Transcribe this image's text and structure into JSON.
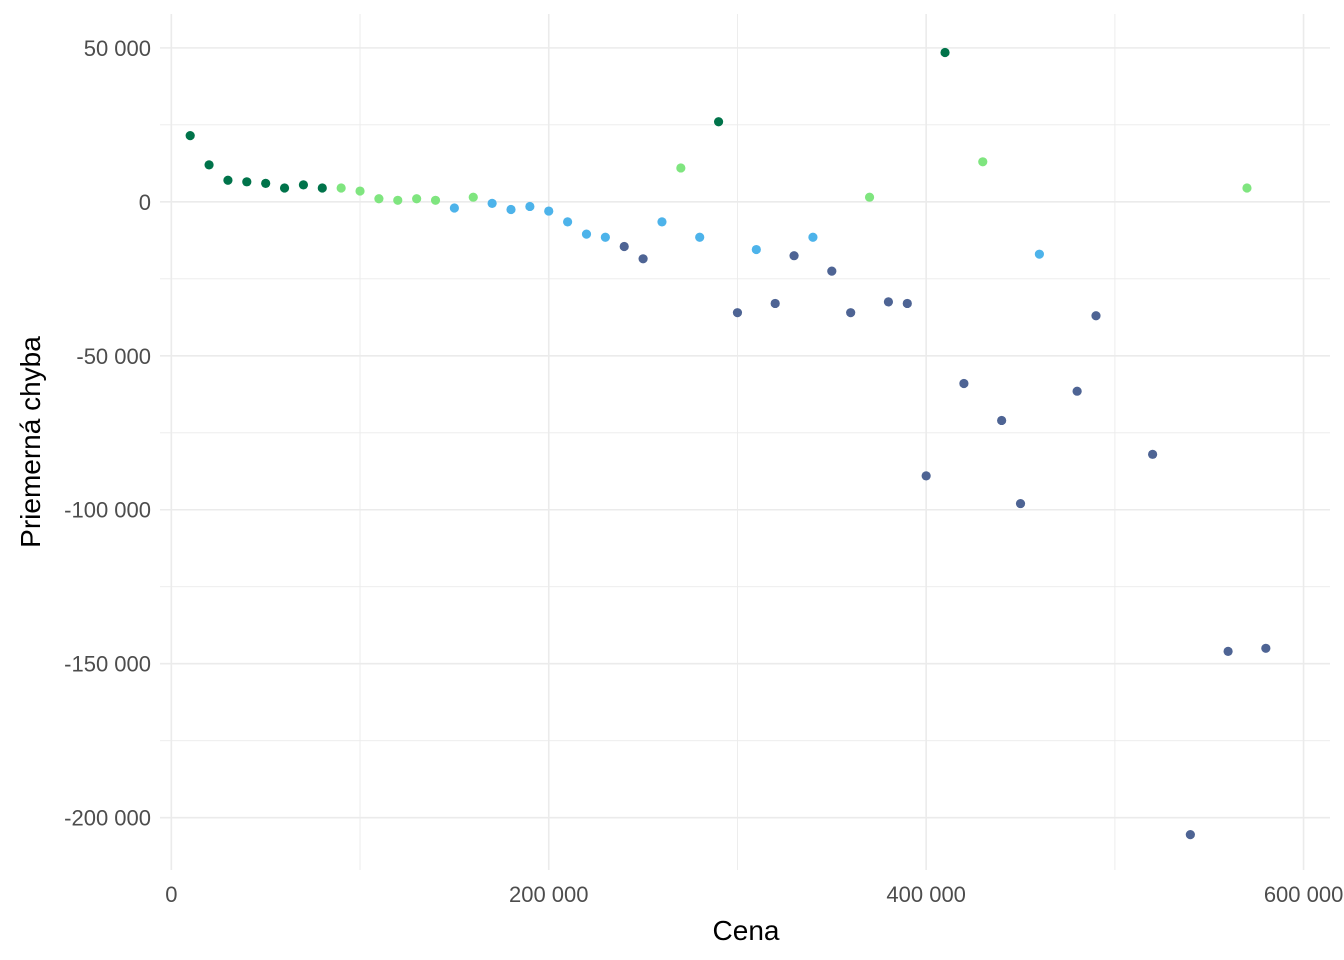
{
  "chart_data": {
    "type": "scatter",
    "title": "",
    "xlabel": "Cena",
    "ylabel": "Priemerná chyba",
    "xlim": [
      -6000,
      614000
    ],
    "ylim": [
      -217000,
      61000
    ],
    "x_ticks": [
      0,
      200000,
      400000,
      600000
    ],
    "x_tick_labels": [
      "0",
      "200 000",
      "400 000",
      "600 000"
    ],
    "x_minor_ticks": [
      100000,
      300000,
      500000
    ],
    "y_ticks": [
      50000,
      0,
      -50000,
      -100000,
      -150000,
      -200000
    ],
    "y_tick_labels": [
      "50 000",
      "0",
      "-50 000",
      "-100 000",
      "-150 000",
      "-200 000"
    ],
    "y_minor_ticks": [
      25000,
      -25000,
      -75000,
      -125000,
      -175000
    ],
    "grid": true,
    "legend": "none",
    "colors": {
      "dark_green": "#00734a",
      "light_green": "#7fe57f",
      "sky_blue": "#4db3ea",
      "slate_blue": "#4e6494"
    },
    "points": [
      {
        "x": 10000,
        "y": 21500,
        "c": "dark_green"
      },
      {
        "x": 20000,
        "y": 12000,
        "c": "dark_green"
      },
      {
        "x": 30000,
        "y": 7000,
        "c": "dark_green"
      },
      {
        "x": 40000,
        "y": 6500,
        "c": "dark_green"
      },
      {
        "x": 50000,
        "y": 6000,
        "c": "dark_green"
      },
      {
        "x": 60000,
        "y": 4500,
        "c": "dark_green"
      },
      {
        "x": 70000,
        "y": 5500,
        "c": "dark_green"
      },
      {
        "x": 80000,
        "y": 4500,
        "c": "dark_green"
      },
      {
        "x": 90000,
        "y": 4500,
        "c": "light_green"
      },
      {
        "x": 100000,
        "y": 3500,
        "c": "light_green"
      },
      {
        "x": 110000,
        "y": 1000,
        "c": "light_green"
      },
      {
        "x": 120000,
        "y": 500,
        "c": "light_green"
      },
      {
        "x": 130000,
        "y": 1000,
        "c": "light_green"
      },
      {
        "x": 140000,
        "y": 500,
        "c": "light_green"
      },
      {
        "x": 150000,
        "y": -2000,
        "c": "sky_blue"
      },
      {
        "x": 160000,
        "y": 1500,
        "c": "light_green"
      },
      {
        "x": 170000,
        "y": -500,
        "c": "sky_blue"
      },
      {
        "x": 180000,
        "y": -2500,
        "c": "sky_blue"
      },
      {
        "x": 190000,
        "y": -1500,
        "c": "sky_blue"
      },
      {
        "x": 200000,
        "y": -3000,
        "c": "sky_blue"
      },
      {
        "x": 210000,
        "y": -6500,
        "c": "sky_blue"
      },
      {
        "x": 220000,
        "y": -10500,
        "c": "sky_blue"
      },
      {
        "x": 230000,
        "y": -11500,
        "c": "sky_blue"
      },
      {
        "x": 240000,
        "y": -14500,
        "c": "slate_blue"
      },
      {
        "x": 250000,
        "y": -18500,
        "c": "slate_blue"
      },
      {
        "x": 260000,
        "y": -6500,
        "c": "sky_blue"
      },
      {
        "x": 270000,
        "y": 11000,
        "c": "light_green"
      },
      {
        "x": 280000,
        "y": -11500,
        "c": "sky_blue"
      },
      {
        "x": 290000,
        "y": 26000,
        "c": "dark_green"
      },
      {
        "x": 300000,
        "y": -36000,
        "c": "slate_blue"
      },
      {
        "x": 310000,
        "y": -15500,
        "c": "sky_blue"
      },
      {
        "x": 320000,
        "y": -33000,
        "c": "slate_blue"
      },
      {
        "x": 330000,
        "y": -17500,
        "c": "slate_blue"
      },
      {
        "x": 340000,
        "y": -11500,
        "c": "sky_blue"
      },
      {
        "x": 350000,
        "y": -22500,
        "c": "slate_blue"
      },
      {
        "x": 360000,
        "y": -36000,
        "c": "slate_blue"
      },
      {
        "x": 370000,
        "y": 1500,
        "c": "light_green"
      },
      {
        "x": 380000,
        "y": -32500,
        "c": "slate_blue"
      },
      {
        "x": 390000,
        "y": -33000,
        "c": "slate_blue"
      },
      {
        "x": 400000,
        "y": -89000,
        "c": "slate_blue"
      },
      {
        "x": 410000,
        "y": 48500,
        "c": "dark_green"
      },
      {
        "x": 420000,
        "y": -59000,
        "c": "slate_blue"
      },
      {
        "x": 430000,
        "y": 13000,
        "c": "light_green"
      },
      {
        "x": 440000,
        "y": -71000,
        "c": "slate_blue"
      },
      {
        "x": 450000,
        "y": -98000,
        "c": "slate_blue"
      },
      {
        "x": 460000,
        "y": -17000,
        "c": "sky_blue"
      },
      {
        "x": 480000,
        "y": -61500,
        "c": "slate_blue"
      },
      {
        "x": 490000,
        "y": -37000,
        "c": "slate_blue"
      },
      {
        "x": 520000,
        "y": -82000,
        "c": "slate_blue"
      },
      {
        "x": 540000,
        "y": -205500,
        "c": "slate_blue"
      },
      {
        "x": 560000,
        "y": -146000,
        "c": "slate_blue"
      },
      {
        "x": 570000,
        "y": 4500,
        "c": "light_green"
      },
      {
        "x": 580000,
        "y": -145000,
        "c": "slate_blue"
      }
    ]
  }
}
